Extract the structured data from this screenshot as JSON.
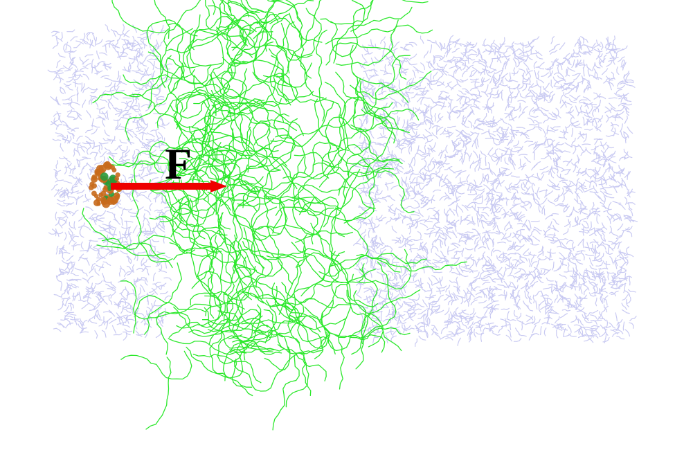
{
  "labels": {
    "force": "F"
  },
  "colors": {
    "background": "#ffffff",
    "solvent": "#c9caf2",
    "membrane": "#2ce82c",
    "arrow": "#ee0000",
    "particle_shell": "#c86a1c",
    "particle_core": "#2a9a3a",
    "label": "#000000"
  },
  "components": [
    "solvent-left",
    "membrane-slab",
    "solvent-right",
    "nanoparticle",
    "force-arrow"
  ]
}
